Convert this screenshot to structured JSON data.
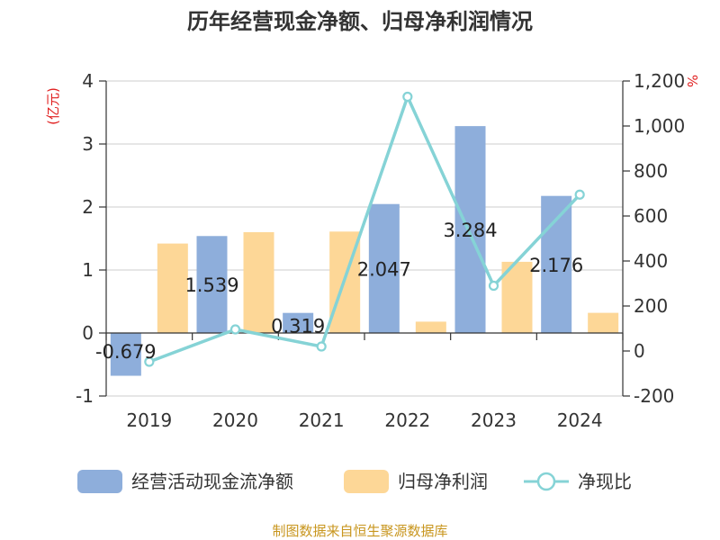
{
  "title": "历年经营现金净额、归母净利润情况",
  "source": "制图数据来自恒生聚源数据库",
  "left_unit": "(亿元)",
  "right_unit": "%",
  "legend": [
    "经营活动现金流净额",
    "归母净利润",
    "净现比"
  ],
  "colors": {
    "bar1": "#8eaedb",
    "bar2": "#fdd797",
    "line": "#85d3d6"
  },
  "chart_data": {
    "type": "bar+line",
    "categories": [
      "2019",
      "2020",
      "2021",
      "2022",
      "2023",
      "2024"
    ],
    "series": [
      {
        "name": "经营活动现金流净额",
        "axis": "left",
        "type": "bar",
        "values": [
          -0.679,
          1.539,
          0.319,
          2.047,
          3.284,
          2.176
        ],
        "labels": [
          "-0.679",
          "1.539",
          "0.319",
          "2.047",
          "3.284",
          "2.176"
        ]
      },
      {
        "name": "归母净利润",
        "axis": "left",
        "type": "bar",
        "values": [
          1.42,
          1.6,
          1.61,
          0.18,
          1.13,
          0.32
        ]
      },
      {
        "name": "净现比",
        "axis": "right",
        "type": "line",
        "values": [
          -48,
          96,
          20,
          1130,
          290,
          695
        ]
      }
    ],
    "left_axis": {
      "ylim": [
        -1,
        4
      ],
      "ticks": [
        "-1",
        "0",
        "1",
        "2",
        "3",
        "4"
      ]
    },
    "right_axis": {
      "ylim": [
        -200,
        1200
      ],
      "ticks": [
        "-200",
        "0",
        "200",
        "400",
        "600",
        "800",
        "1,000",
        "1,200"
      ]
    },
    "legend_position": "bottom",
    "grid": true
  }
}
